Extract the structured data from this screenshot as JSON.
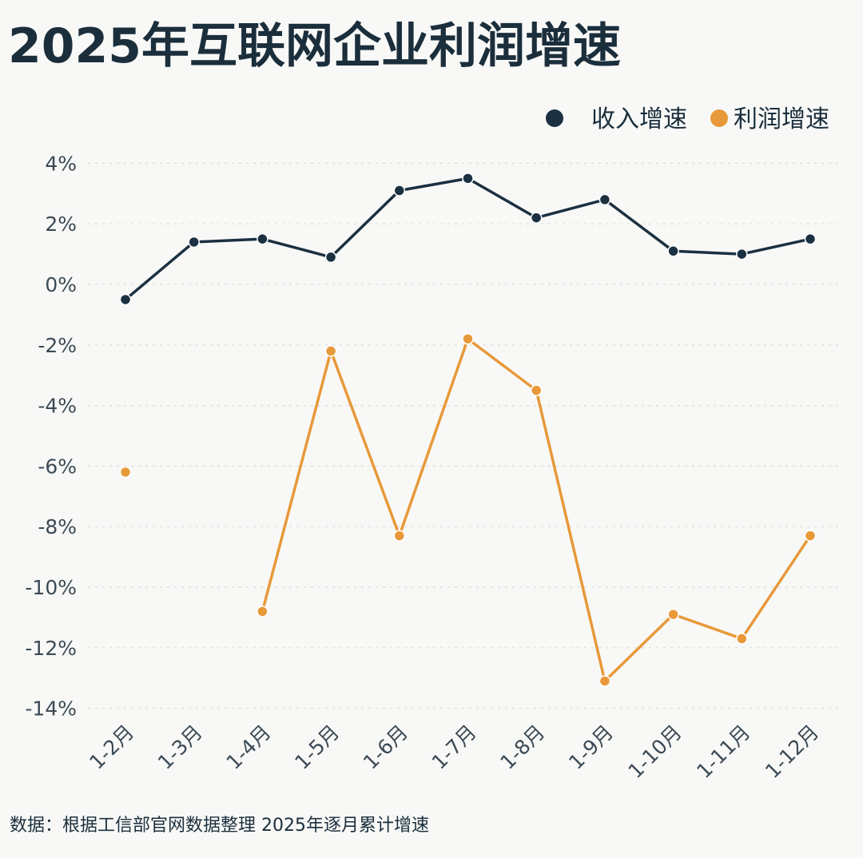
{
  "chart_data": {
    "type": "line",
    "title": "2025年互联网企业利润增速",
    "source_note": "数据：根据工信部官网数据整理   2025年逐月累计增速",
    "categories": [
      "1-2月",
      "1-3月",
      "1-4月",
      "1-5月",
      "1-6月",
      "1-7月",
      "1-8月",
      "1-9月",
      "1-10月",
      "1-11月",
      "1-12月"
    ],
    "series": [
      {
        "name": "收入增速",
        "color": "#1b3040",
        "values": [
          -0.5,
          1.4,
          1.5,
          0.9,
          3.1,
          3.5,
          2.2,
          2.8,
          1.1,
          1.0,
          1.5
        ]
      },
      {
        "name": "利润增速",
        "color": "#e8993a",
        "values": [
          -6.2,
          null,
          -10.8,
          -2.2,
          -8.3,
          -1.8,
          -3.5,
          -13.1,
          -10.9,
          -11.7,
          -8.3
        ]
      }
    ],
    "ylim": [
      -14,
      4
    ],
    "yticks": [
      4,
      2,
      0,
      -2,
      -4,
      -6,
      -8,
      -10,
      -12,
      -14
    ],
    "ytick_labels": [
      "4%",
      "2%",
      "0%",
      "-2%",
      "-4%",
      "-6%",
      "-8%",
      "-10%",
      "-12%",
      "-14%"
    ],
    "xlabel": "",
    "ylabel": "",
    "grid": true,
    "legend_position": "top-right"
  }
}
